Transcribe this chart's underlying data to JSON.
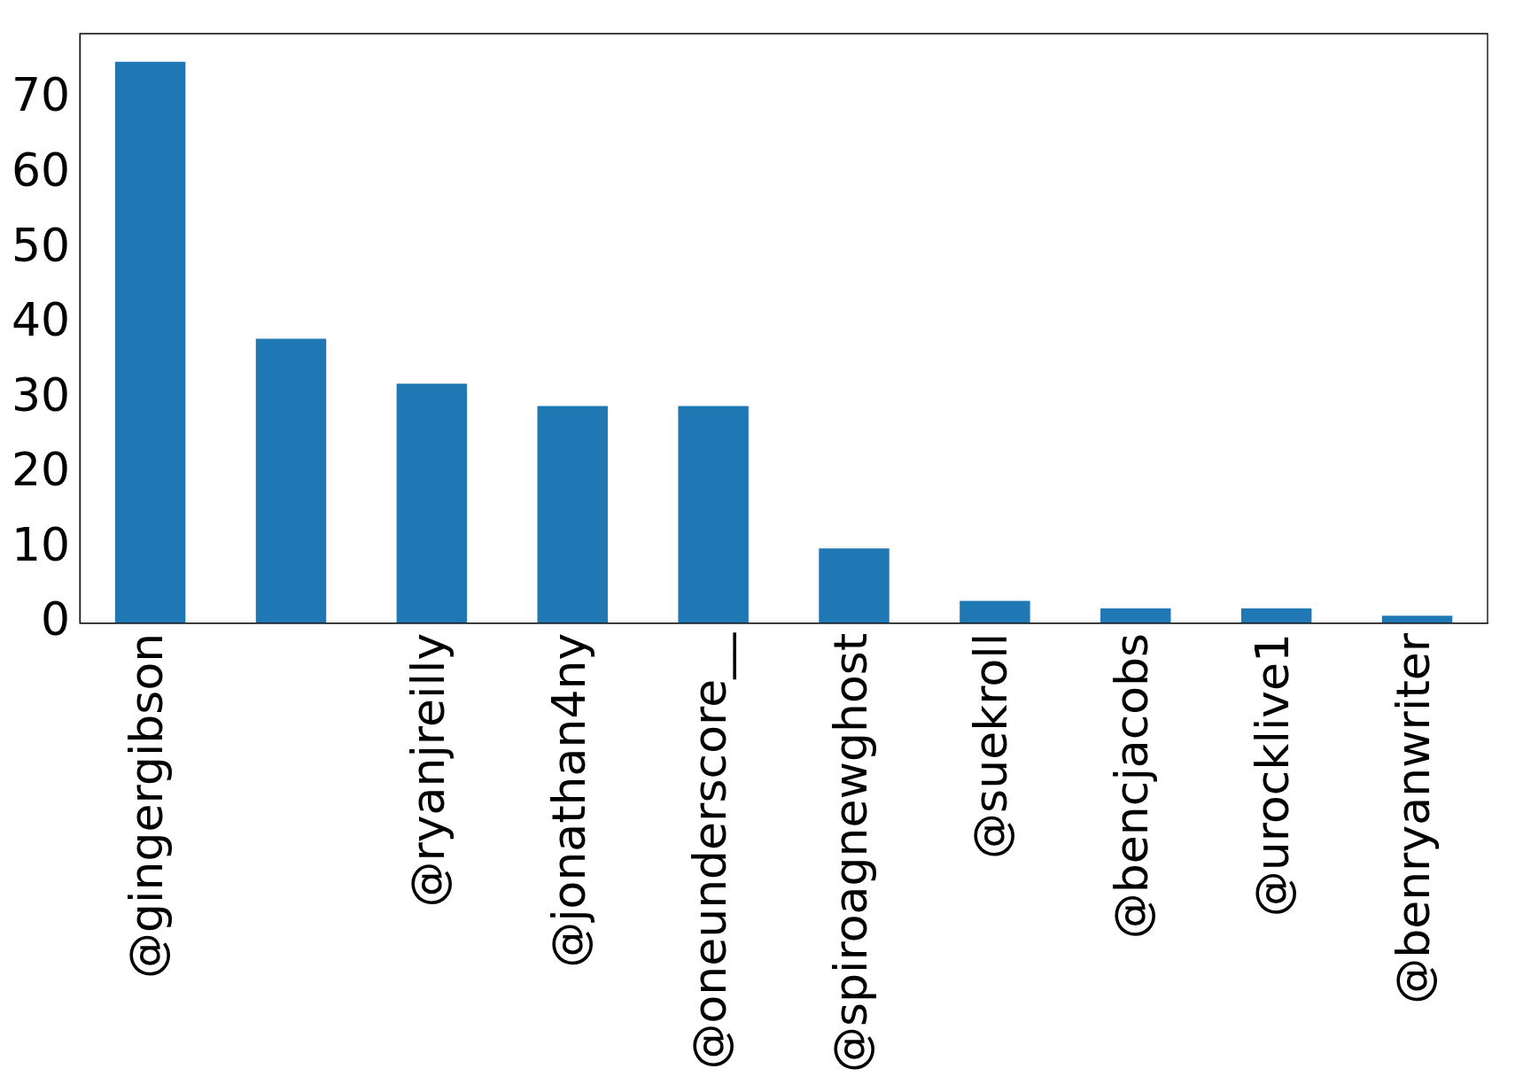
{
  "chart_data": {
    "type": "bar",
    "categories": [
      "@gingergibson",
      null,
      "@ryanjreilly",
      "@jonathan4ny",
      "@oneunderscore__",
      "@spiroagnewghost",
      "@suekroll",
      "@bencjacobs",
      "@urocklive1",
      "@benryanwriter"
    ],
    "values": [
      75,
      38,
      32,
      29,
      29,
      10,
      3,
      2,
      2,
      1
    ],
    "color": "#1f77b4",
    "ylim": [
      0,
      78.75
    ],
    "yticks": [
      0,
      10,
      20,
      30,
      40,
      50,
      60,
      70
    ]
  }
}
